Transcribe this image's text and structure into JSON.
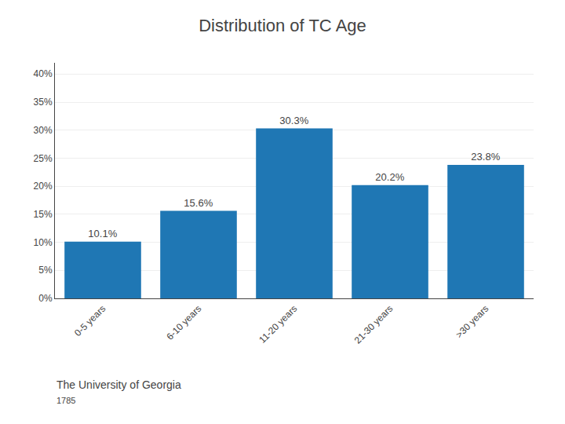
{
  "chart_data": {
    "type": "bar",
    "title": "Distribution of TC Age",
    "categories": [
      "0-5 years",
      "6-10 years",
      "11-20 years",
      "21-30 years",
      ">30 years"
    ],
    "values": [
      10.1,
      15.6,
      30.3,
      20.2,
      23.8
    ],
    "value_labels": [
      "10.1%",
      "15.6%",
      "30.3%",
      "20.2%",
      "23.8%"
    ],
    "data_labels": true,
    "ylim": [
      0,
      42
    ],
    "yticks": [
      {
        "value": 0,
        "label": "0%"
      },
      {
        "value": 5,
        "label": "5%"
      },
      {
        "value": 10,
        "label": "10%"
      },
      {
        "value": 15,
        "label": "15%"
      },
      {
        "value": 20,
        "label": "20%"
      },
      {
        "value": 25,
        "label": "25%"
      },
      {
        "value": 30,
        "label": "30%"
      },
      {
        "value": 35,
        "label": "35%"
      },
      {
        "value": 40,
        "label": "40%"
      }
    ],
    "grid": true,
    "annotations": [
      "The University of Georgia",
      "1785"
    ]
  }
}
